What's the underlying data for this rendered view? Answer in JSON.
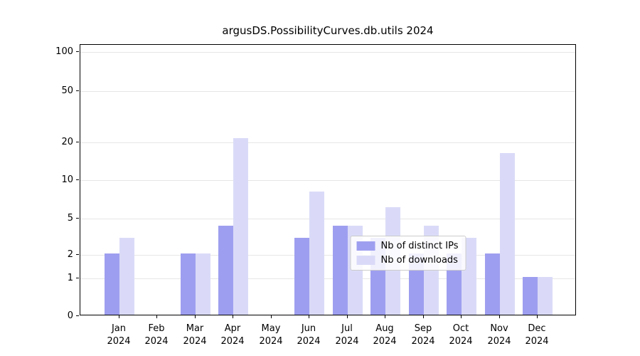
{
  "title": "argusDS.PossibilityCurves.db.utils 2024",
  "chart_data": {
    "type": "bar",
    "title": "argusDS.PossibilityCurves.db.utils 2024",
    "categories": [
      "Jan",
      "Feb",
      "Mar",
      "Apr",
      "May",
      "Jun",
      "Jul",
      "Aug",
      "Sep",
      "Oct",
      "Nov",
      "Dec"
    ],
    "category_year": "2024",
    "series": [
      {
        "name": "Nb of distinct IPs",
        "color": "#9e9ef0",
        "values": [
          2,
          0,
          2,
          4,
          0,
          3,
          4,
          3,
          2,
          2,
          2,
          1
        ]
      },
      {
        "name": "Nb of downloads",
        "color": "#dadaf8",
        "values": [
          3,
          0,
          2,
          21,
          0,
          8,
          4,
          6,
          4,
          3,
          16,
          1
        ]
      }
    ],
    "xlabel": "",
    "ylabel": "",
    "y_ticks": [
      0,
      1,
      2,
      5,
      10,
      20,
      50,
      100
    ],
    "ylim": [
      0,
      100
    ],
    "y_scale": "symlog",
    "grid": "horizontal",
    "legend_position": "lower center"
  }
}
